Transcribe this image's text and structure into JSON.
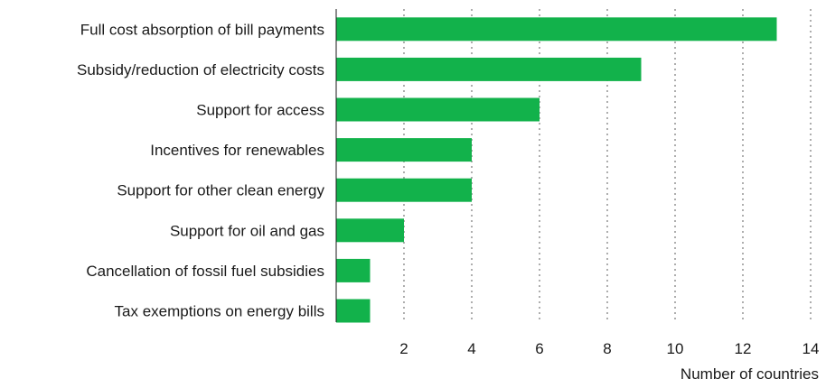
{
  "chart_data": {
    "type": "bar",
    "orientation": "horizontal",
    "categories": [
      "Full cost absorption of bill payments",
      "Subsidy/reduction of electricity costs",
      "Support for access",
      "Incentives for renewables",
      "Support for other clean energy",
      "Support for oil and gas",
      "Cancellation of fossil fuel subsidies",
      "Tax exemptions on energy bills"
    ],
    "values": [
      13,
      9,
      6,
      4,
      4,
      2,
      1,
      1
    ],
    "xlabel": "Number of countries",
    "ylabel": "",
    "xlim": [
      0,
      14
    ],
    "xticks": [
      2,
      4,
      6,
      8,
      10,
      12,
      14
    ],
    "grid": "vertical dotted",
    "bar_color": "#12b24b",
    "legend": "none"
  }
}
